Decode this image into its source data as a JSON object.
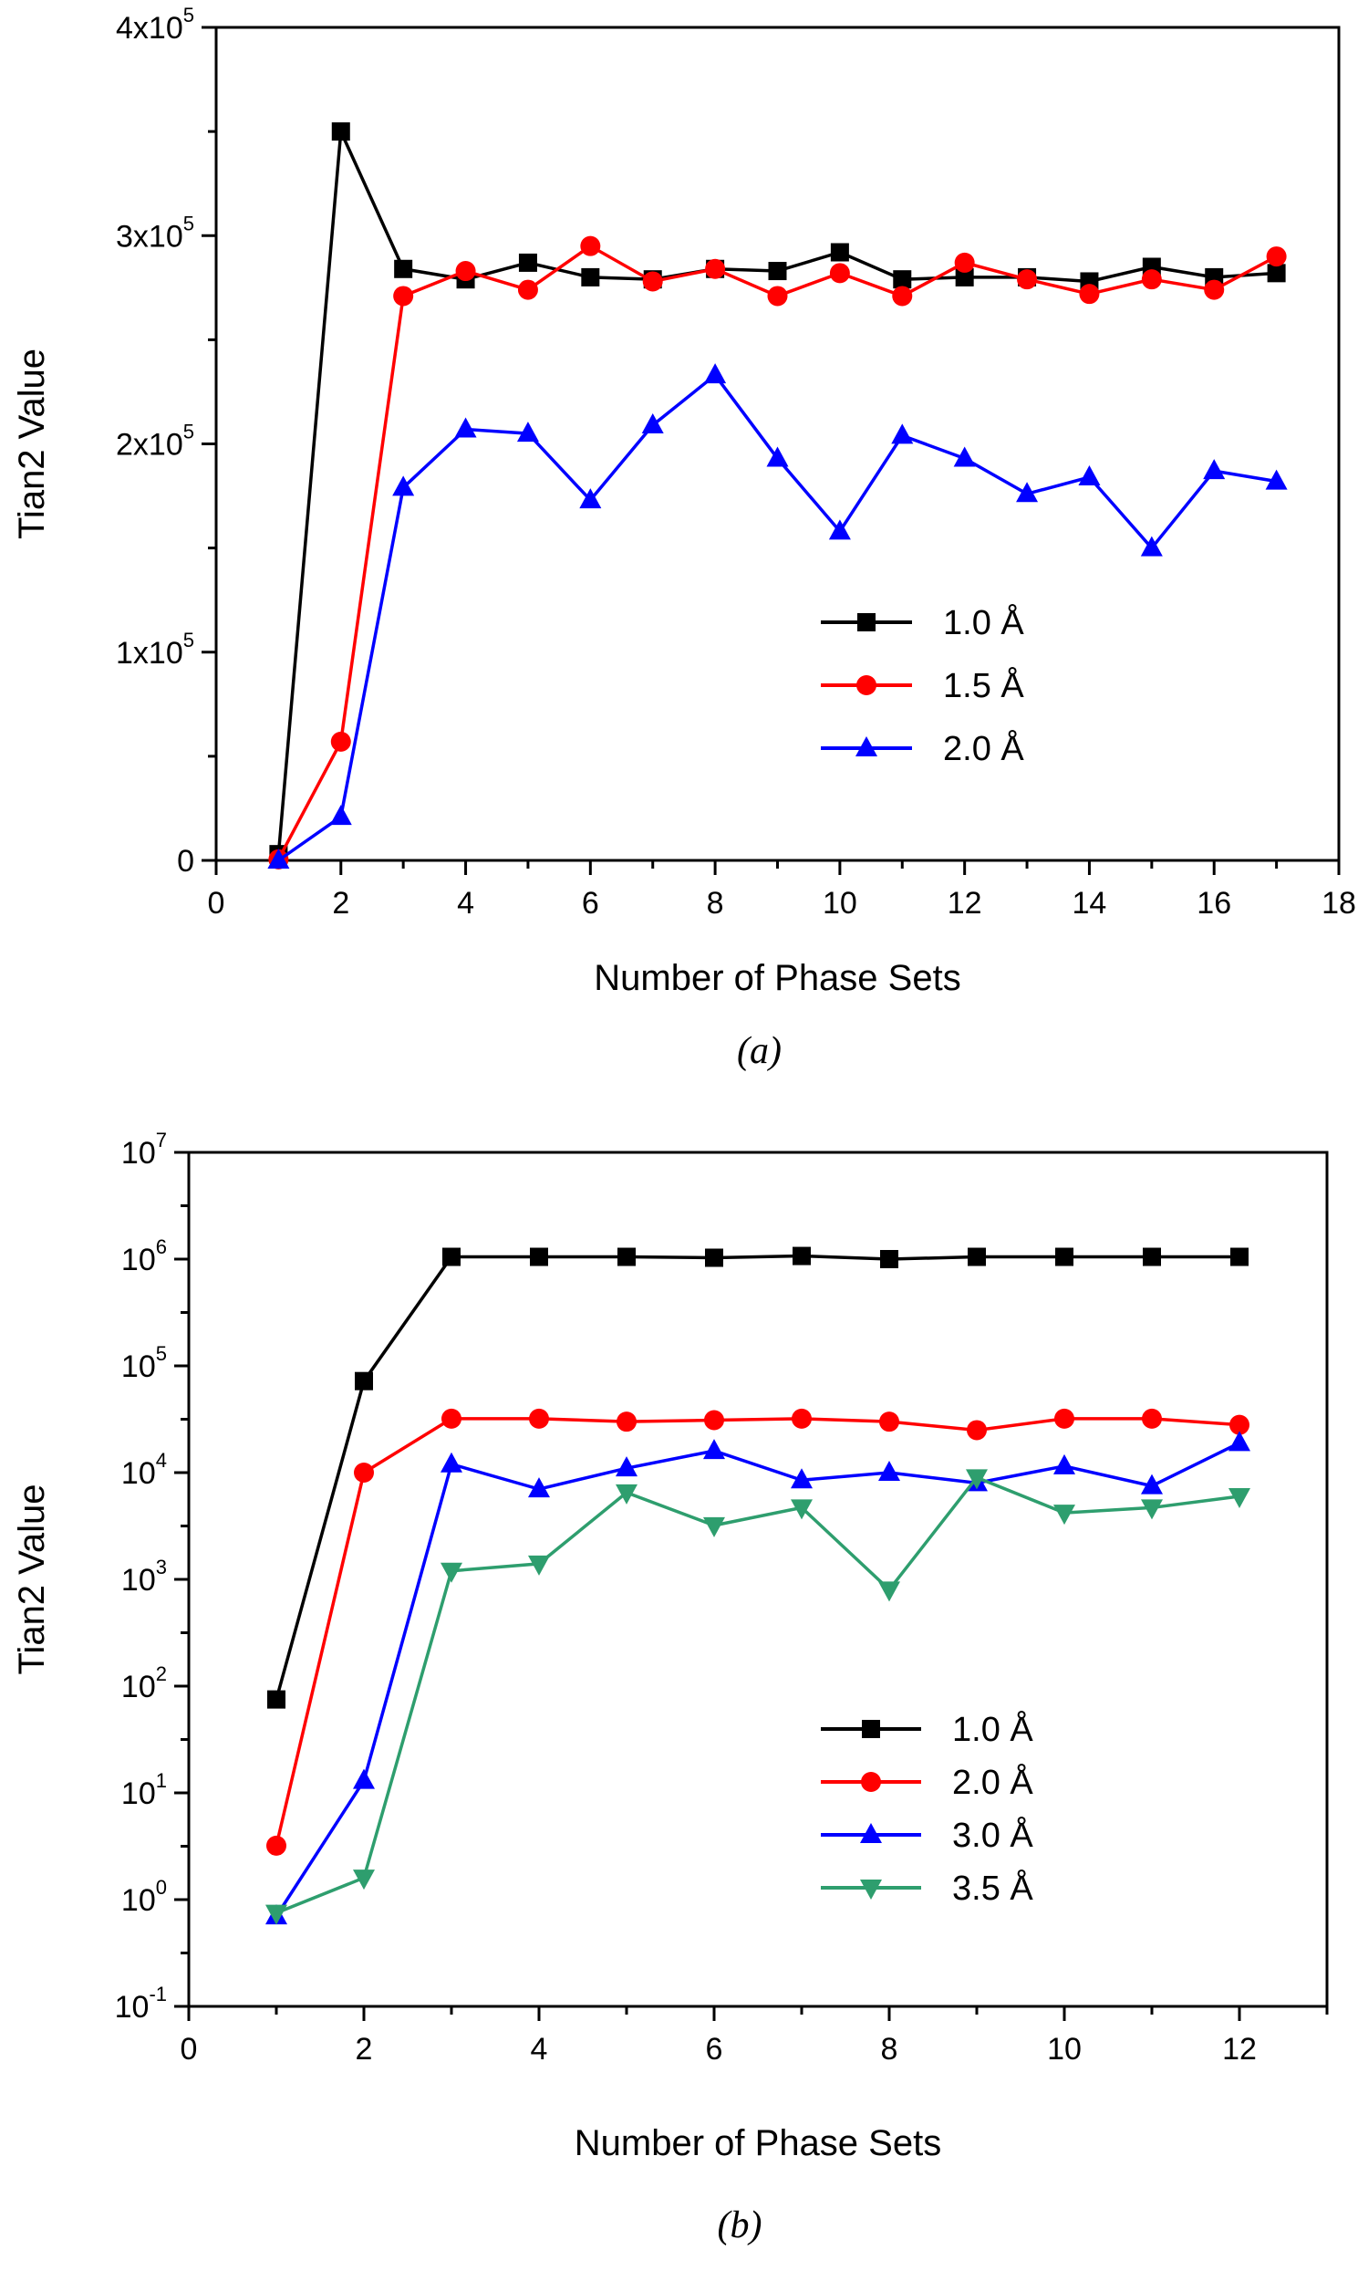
{
  "chart_data": [
    {
      "type": "line",
      "caption": "(a)",
      "xlabel": "Number of Phase Sets",
      "ylabel": "Tian2 Value",
      "xlim": [
        0,
        18
      ],
      "ylim": [
        0,
        400000
      ],
      "yscale": "linear",
      "xticks": [
        0,
        2,
        4,
        6,
        8,
        10,
        12,
        14,
        16,
        18
      ],
      "yticks": [
        {
          "value": 0,
          "base": "0",
          "exp": ""
        },
        {
          "value": 100000,
          "base": "1x10",
          "exp": "5"
        },
        {
          "value": 200000,
          "base": "2x10",
          "exp": "5"
        },
        {
          "value": 300000,
          "base": "3x10",
          "exp": "5"
        },
        {
          "value": 400000,
          "base": "4x10",
          "exp": "5"
        }
      ],
      "grid": false,
      "legend_position": "center-right",
      "x": [
        1,
        2,
        3,
        4,
        5,
        6,
        7,
        8,
        9,
        10,
        11,
        12,
        13,
        14,
        15,
        16,
        17
      ],
      "series": [
        {
          "name": "1.0 Å",
          "color": "#000000",
          "marker": "square",
          "values": [
            3000,
            350000,
            284000,
            279000,
            287000,
            280000,
            279000,
            284000,
            283000,
            292000,
            279000,
            280000,
            280000,
            278000,
            285000,
            280000,
            282000
          ]
        },
        {
          "name": "1.5 Å",
          "color": "#ff0000",
          "marker": "circle",
          "values": [
            500,
            57000,
            271000,
            283000,
            274000,
            295000,
            278000,
            284000,
            271000,
            282000,
            271000,
            287000,
            279000,
            272000,
            279000,
            274000,
            290000
          ]
        },
        {
          "name": "2.0 Å",
          "color": "#0000ff",
          "marker": "triangle-up",
          "values": [
            0,
            21000,
            179000,
            207000,
            205000,
            173000,
            209000,
            233000,
            193000,
            158000,
            204000,
            193000,
            176000,
            184000,
            150000,
            187000,
            182000
          ]
        }
      ]
    },
    {
      "type": "line",
      "caption": "(b)",
      "xlabel": "Number of Phase Sets",
      "ylabel": "Tian2 Value",
      "xlim": [
        0,
        13
      ],
      "ylim": [
        0.1,
        10000000
      ],
      "yscale": "log",
      "xticks": [
        0,
        2,
        4,
        6,
        8,
        10,
        12
      ],
      "yticks": [
        {
          "value": 0.1,
          "base": "10",
          "exp": "-1"
        },
        {
          "value": 1,
          "base": "10",
          "exp": "0"
        },
        {
          "value": 10,
          "base": "10",
          "exp": "1"
        },
        {
          "value": 100,
          "base": "10",
          "exp": "2"
        },
        {
          "value": 1000,
          "base": "10",
          "exp": "3"
        },
        {
          "value": 10000,
          "base": "10",
          "exp": "4"
        },
        {
          "value": 100000,
          "base": "10",
          "exp": "5"
        },
        {
          "value": 1000000,
          "base": "10",
          "exp": "6"
        },
        {
          "value": 10000000,
          "base": "10",
          "exp": "7"
        }
      ],
      "grid": false,
      "legend_position": "center-right",
      "x": [
        1,
        2,
        3,
        4,
        5,
        6,
        7,
        8,
        9,
        10,
        11,
        12
      ],
      "series": [
        {
          "name": "1.0 Å",
          "color": "#000000",
          "marker": "square",
          "values": [
            75,
            72000,
            1050000,
            1050000,
            1050000,
            1030000,
            1070000,
            1000000,
            1050000,
            1050000,
            1050000,
            1050000
          ]
        },
        {
          "name": "2.0 Å",
          "color": "#ff0000",
          "marker": "circle",
          "values": [
            3.2,
            10000,
            32000,
            32000,
            30000,
            31000,
            32000,
            30000,
            25000,
            32000,
            32000,
            28000
          ]
        },
        {
          "name": "3.0 Å",
          "color": "#0000ff",
          "marker": "triangle-up",
          "values": [
            0.7,
            13,
            12000,
            7000,
            11000,
            16000,
            8500,
            10000,
            8000,
            11500,
            7500,
            19000
          ]
        },
        {
          "name": "3.5 Å",
          "color": "#2e9e6e",
          "marker": "triangle-down",
          "values": [
            0.75,
            1.6,
            1200,
            1400,
            6500,
            3200,
            4700,
            800,
            9000,
            4200,
            4700,
            6000
          ]
        }
      ]
    }
  ]
}
